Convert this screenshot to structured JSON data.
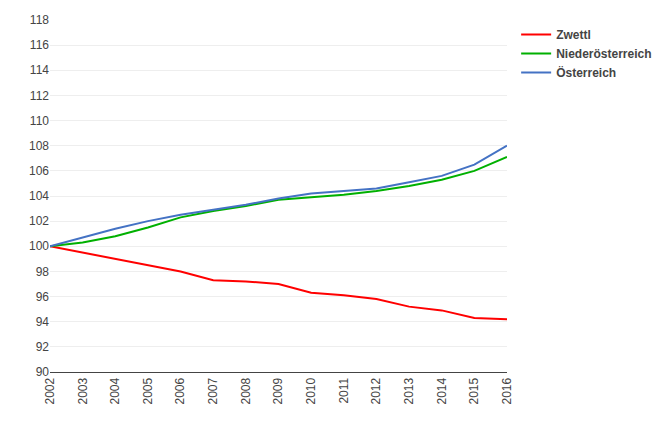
{
  "chart_data": {
    "type": "line",
    "x": [
      2002,
      2003,
      2004,
      2005,
      2006,
      2007,
      2008,
      2009,
      2010,
      2011,
      2012,
      2013,
      2014,
      2015,
      2016
    ],
    "series": [
      {
        "name": "Zwettl",
        "color": "#ff0000",
        "values": [
          100.0,
          99.5,
          99.0,
          98.5,
          98.0,
          97.3,
          97.2,
          97.0,
          96.3,
          96.1,
          95.8,
          95.2,
          94.9,
          94.3,
          94.2
        ]
      },
      {
        "name": "Niederösterreich",
        "color": "#00b000",
        "values": [
          100.0,
          100.3,
          100.8,
          101.5,
          102.3,
          102.8,
          103.2,
          103.7,
          103.9,
          104.1,
          104.4,
          104.8,
          105.3,
          106.0,
          107.1
        ]
      },
      {
        "name": "Österreich",
        "color": "#4472c4",
        "values": [
          100.0,
          100.7,
          101.4,
          102.0,
          102.5,
          102.9,
          103.3,
          103.8,
          104.2,
          104.4,
          104.6,
          105.1,
          105.6,
          106.5,
          108.0
        ]
      }
    ],
    "xlim": [
      2002,
      2016
    ],
    "xticks": [
      2002,
      2003,
      2004,
      2005,
      2006,
      2007,
      2008,
      2009,
      2010,
      2011,
      2012,
      2013,
      2014,
      2015,
      2016
    ],
    "ylim": [
      90,
      118
    ],
    "yticks": [
      90,
      92,
      94,
      96,
      98,
      100,
      102,
      104,
      106,
      108,
      110,
      112,
      114,
      116,
      118
    ],
    "grid": true,
    "legend": "right"
  }
}
